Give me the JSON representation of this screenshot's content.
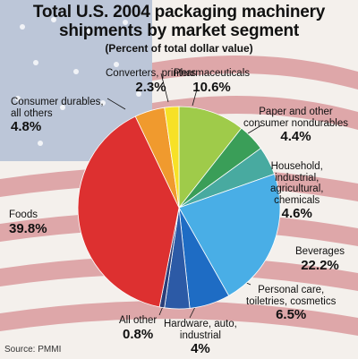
{
  "header": {
    "title_line1": "Total U.S. 2004 packaging machinery",
    "title_line2": "shipments by market segment",
    "subtitle": "(Percent of total dollar value)"
  },
  "source": "Source: PMMI",
  "colors": {
    "flag_red": "#c4505a",
    "flag_blue": "#8ea4c8",
    "flag_white": "#f4f0ec"
  },
  "chart_data": {
    "type": "pie",
    "title": "Total U.S. 2004 packaging machinery shipments by market segment",
    "subtitle": "(Percent of total dollar value)",
    "unit": "percent",
    "slices": [
      {
        "label": "Pharmaceuticals",
        "value": 10.6,
        "pct": "10.6%",
        "color": "#9fcb4a"
      },
      {
        "label": "Paper and other consumer nondurables",
        "value": 4.4,
        "pct": "4.4%",
        "color": "#3a9e58"
      },
      {
        "label": "Household, industrial, agricultural, chemicals",
        "value": 4.6,
        "pct": "4.6%",
        "color": "#48aaa0"
      },
      {
        "label": "Beverages",
        "value": 22.2,
        "pct": "22.2%",
        "color": "#49aee6"
      },
      {
        "label": "Personal care, toiletries, cosmetics",
        "value": 6.5,
        "pct": "6.5%",
        "color": "#1e6cc4"
      },
      {
        "label": "Hardware, auto, industrial",
        "value": 4.0,
        "pct": "4%",
        "color": "#2c5aa6"
      },
      {
        "label": "All other",
        "value": 0.8,
        "pct": "0.8%",
        "color": "#2a3f7a"
      },
      {
        "label": "Foods",
        "value": 39.8,
        "pct": "39.8%",
        "color": "#dd3030"
      },
      {
        "label": "Consumer durables, all others",
        "value": 4.8,
        "pct": "4.8%",
        "color": "#f09a2e"
      },
      {
        "label": "Converters, printers",
        "value": 2.3,
        "pct": "2.3%",
        "color": "#f7e126"
      }
    ]
  },
  "labels": {
    "pharma": {
      "name": "Pharmaceuticals",
      "pct": "10.6%"
    },
    "paper": {
      "name1": "Paper and other",
      "name2": "consumer nondurables",
      "pct": "4.4%"
    },
    "household": {
      "name1": "Household,",
      "name2": "industrial,",
      "name3": "agricultural,",
      "name4": "chemicals",
      "pct": "4.6%"
    },
    "beverages": {
      "name": "Beverages",
      "pct": "22.2%"
    },
    "personal": {
      "name1": "Personal care,",
      "name2": "toiletries, cosmetics",
      "pct": "6.5%"
    },
    "hardware": {
      "name1": "Hardware, auto,",
      "name2": "industrial",
      "pct": "4%"
    },
    "allother": {
      "name": "All other",
      "pct": "0.8%"
    },
    "foods": {
      "name": "Foods",
      "pct": "39.8%"
    },
    "durables": {
      "name1": "Consumer durables,",
      "name2": "all others",
      "pct": "4.8%"
    },
    "converters": {
      "name": "Converters, printers",
      "pct": "2.3%"
    }
  }
}
